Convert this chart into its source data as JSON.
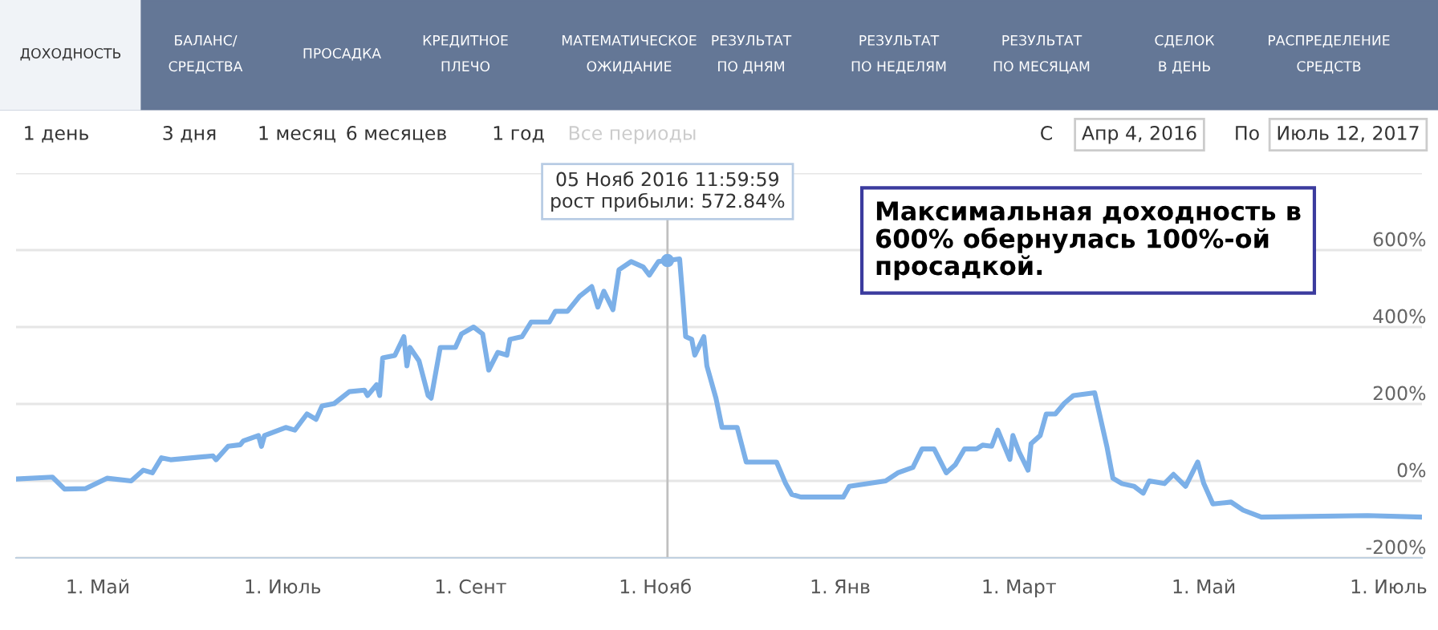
{
  "chart_data": {
    "type": "line",
    "x": [
      "2016-04-04",
      "2016-04-16",
      "2016-04-20",
      "2016-04-27",
      "2016-05-04",
      "2016-05-12",
      "2016-05-16",
      "2016-05-19",
      "2016-05-22",
      "2016-05-25",
      "2016-06-08",
      "2016-06-09",
      "2016-06-13",
      "2016-06-17",
      "2016-06-18",
      "2016-06-23",
      "2016-06-24",
      "2016-06-25",
      "2016-07-02",
      "2016-07-05",
      "2016-07-09",
      "2016-07-12",
      "2016-07-14",
      "2016-07-18",
      "2016-07-23",
      "2016-07-28",
      "2016-07-29",
      "2016-08-01",
      "2016-08-02",
      "2016-08-03",
      "2016-08-07",
      "2016-08-10",
      "2016-08-11",
      "2016-08-12",
      "2016-08-15",
      "2016-08-18",
      "2016-08-19",
      "2016-08-22",
      "2016-08-27",
      "2016-08-29",
      "2016-09-02",
      "2016-09-05",
      "2016-09-07",
      "2016-09-10",
      "2016-09-13",
      "2016-09-14",
      "2016-09-18",
      "2016-09-21",
      "2016-09-27",
      "2016-09-29",
      "2016-10-03",
      "2016-10-07",
      "2016-10-11",
      "2016-10-13",
      "2016-10-15",
      "2016-10-18",
      "2016-10-20",
      "2016-10-24",
      "2016-10-28",
      "2016-10-30",
      "2016-11-02",
      "2016-11-05",
      "2016-11-09",
      "2016-11-10",
      "2016-11-11",
      "2016-11-13",
      "2016-11-14",
      "2016-11-17",
      "2016-11-18",
      "2016-11-21",
      "2016-11-23",
      "2016-11-28",
      "2016-12-01",
      "2016-12-11",
      "2016-12-14",
      "2016-12-16",
      "2016-12-19",
      "2017-01-02",
      "2017-01-04",
      "2017-01-16",
      "2017-01-20",
      "2017-01-25",
      "2017-01-28",
      "2017-02-01",
      "2017-02-05",
      "2017-02-08",
      "2017-02-11",
      "2017-02-15",
      "2017-02-17",
      "2017-02-20",
      "2017-02-22",
      "2017-02-26",
      "2017-02-27",
      "2017-03-01",
      "2017-03-04",
      "2017-03-05",
      "2017-03-08",
      "2017-03-10",
      "2017-03-13",
      "2017-03-16",
      "2017-03-19",
      "2017-03-26",
      "2017-03-30",
      "2017-04-01",
      "2017-04-04",
      "2017-04-08",
      "2017-04-11",
      "2017-04-13",
      "2017-04-18",
      "2017-04-21",
      "2017-04-25",
      "2017-04-29",
      "2017-05-01",
      "2017-05-04",
      "2017-05-10",
      "2017-05-14",
      "2017-05-20",
      "2017-06-24",
      "2017-07-12"
    ],
    "series": [
      {
        "color": "#7cb0e8",
        "values": [
          5,
          10,
          -21,
          -20,
          7,
          0,
          28,
          21,
          60,
          55,
          65,
          55,
          90,
          94,
          104,
          118,
          90,
          118,
          139,
          132,
          174,
          160,
          195,
          201,
          232,
          236,
          222,
          250,
          222,
          320,
          326,
          375,
          299,
          347,
          312,
          222,
          215,
          347,
          347,
          382,
          400,
          382,
          288,
          334,
          327,
          368,
          375,
          413,
          413,
          441,
          441,
          480,
          505,
          452,
          493,
          445,
          549,
          570,
          556,
          535,
          570,
          572.84,
          577,
          480,
          375,
          368,
          327,
          375,
          299,
          215,
          139,
          139,
          49,
          49,
          -7,
          -35,
          -42,
          -42,
          -14,
          0,
          21,
          35,
          83,
          83,
          21,
          42,
          83,
          83,
          93,
          90,
          132,
          56,
          118,
          76,
          28,
          97,
          118,
          174,
          174,
          202,
          222,
          229,
          90,
          7,
          -7,
          -14,
          -32,
          0,
          -7,
          17,
          -14,
          49,
          -7,
          -60,
          -55,
          -76,
          -94,
          -90,
          -94
        ]
      }
    ],
    "xlim": [
      "2016-04-04",
      "2017-07-12"
    ],
    "xticks": [
      {
        "value": "2016-05-01",
        "label": "1. Май"
      },
      {
        "value": "2016-07-01",
        "label": "1. Июль"
      },
      {
        "value": "2016-09-01",
        "label": "1. Сент"
      },
      {
        "value": "2016-11-01",
        "label": "1. Нояб"
      },
      {
        "value": "2017-01-01",
        "label": "1. Янв"
      },
      {
        "value": "2017-03-01",
        "label": "1. Март"
      },
      {
        "value": "2017-05-01",
        "label": "1. Май"
      },
      {
        "value": "2017-07-01",
        "label": "1. Июль"
      }
    ],
    "ylim": [
      -200,
      800
    ],
    "yticks": [
      {
        "value": -200,
        "label": "-200%"
      },
      {
        "value": 0,
        "label": "0%"
      },
      {
        "value": 200,
        "label": "200%"
      },
      {
        "value": 400,
        "label": "400%"
      },
      {
        "value": 600,
        "label": "600%"
      },
      {
        "value": 800,
        "label": null
      }
    ],
    "grid": "y",
    "legend": false,
    "marker": "none",
    "line_style": "solid",
    "ref_lines": [
      {
        "axis": "x",
        "value": "2016-11-05",
        "color": "#c0c0c0"
      }
    ],
    "annotations": [
      "ДОХОДНОСТЬ",
      "БАЛАНС/\nСРЕДСТВА",
      "ПРОСАДКА",
      "КРЕДИТНОЕ\nПЛЕЧО",
      "МАТЕМАТИЧЕСКОЕ\nОЖИДАНИЕ",
      "РЕЗУЛЬТАТ\nПО ДНЯМ",
      "РЕЗУЛЬТАТ\nПО НЕДЕЛЯМ",
      "РЕЗУЛЬТАТ\nПО МЕСЯЦАМ",
      "СДЕЛОК\nВ ДЕНЬ",
      "РАСПРЕДЕЛЕНИЕ\nСРЕДСТВ",
      "1 день",
      "3 дня",
      "1 месяц",
      "6 месяцев",
      "1 год",
      "Все периоды",
      "С",
      "Апр 4, 2016",
      "По",
      "Июль 12, 2017",
      "Максимальная доходность в\n600% обернулась 100%-ой\nпросадкой.",
      {
        "text": "05 Нояб 2016 11:59:59\nрост прибыли: 572.84%",
        "x": "2016-11-05",
        "y": 572.84
      }
    ]
  }
}
